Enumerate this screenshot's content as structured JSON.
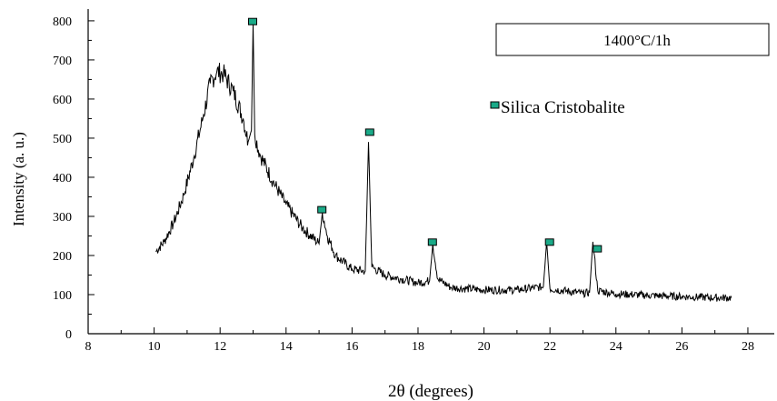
{
  "chart_data": {
    "type": "line",
    "title": "",
    "xlabel": "2θ (degrees)",
    "ylabel": "Intensity (a. u.)",
    "xlim": [
      8,
      28.8
    ],
    "ylim": [
      0,
      830
    ],
    "x_ticks": [
      8,
      10,
      12,
      14,
      16,
      18,
      20,
      22,
      24,
      26,
      28
    ],
    "y_ticks": [
      0,
      100,
      200,
      300,
      400,
      500,
      600,
      700,
      800
    ],
    "grid": false,
    "box_label": "1400°C/1h",
    "legend": {
      "label": "Silica Cristobalite",
      "placement": "top-right"
    },
    "colors": {
      "line": "#000000",
      "marker": "#1aaa88"
    },
    "series": [
      {
        "values_x": [
          10.05,
          10.3,
          10.6,
          10.9,
          11.2,
          11.5,
          11.7,
          11.9,
          12.1,
          12.4,
          12.7,
          12.85,
          12.95,
          13.0,
          13.05,
          13.2,
          13.6,
          14.0,
          14.5,
          15.0,
          15.1,
          15.25,
          15.5,
          16.0,
          16.4,
          16.5,
          16.6,
          17.0,
          17.5,
          18.0,
          18.35,
          18.45,
          18.6,
          19.0,
          20.0,
          21.0,
          21.8,
          21.9,
          22.0,
          23.0,
          23.2,
          23.3,
          23.45,
          24.0,
          25.0,
          26.0,
          27.0,
          27.5
        ],
        "values_y": [
          210,
          235,
          285,
          355,
          450,
          560,
          640,
          670,
          665,
          620,
          550,
          490,
          520,
          795,
          510,
          460,
          390,
          330,
          270,
          230,
          310,
          250,
          200,
          165,
          160,
          490,
          170,
          150,
          140,
          130,
          135,
          230,
          140,
          118,
          112,
          112,
          120,
          235,
          115,
          103,
          105,
          235,
          110,
          102,
          98,
          95,
          92,
          92
        ]
      }
    ],
    "markers": [
      {
        "x": 13.0,
        "y": 797
      },
      {
        "x": 15.1,
        "y": 316
      },
      {
        "x": 16.55,
        "y": 514
      },
      {
        "x": 18.45,
        "y": 233
      },
      {
        "x": 22.0,
        "y": 233
      },
      {
        "x": 23.45,
        "y": 216
      }
    ]
  }
}
